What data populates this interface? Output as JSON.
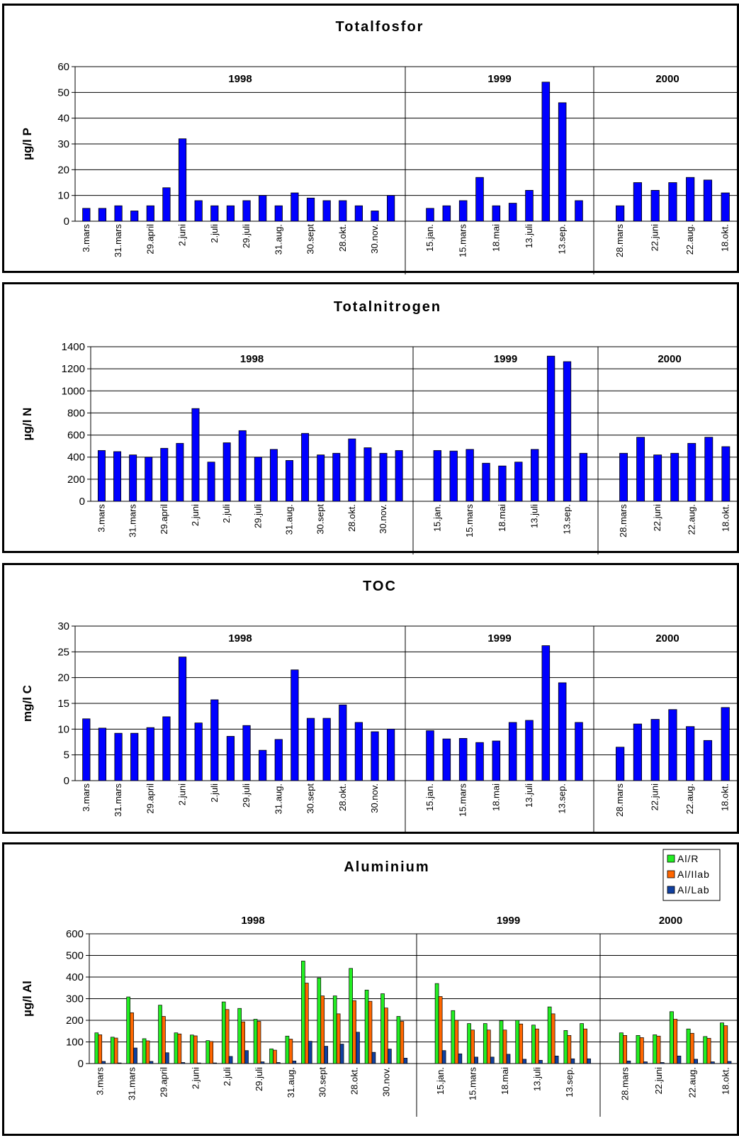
{
  "colors": {
    "bar": "#0000FF",
    "al_r": "#22EE22",
    "al_ilab": "#FF6600",
    "al_lab": "#1040A0",
    "grid": "#000000"
  },
  "chart_data": [
    {
      "type": "bar",
      "title": "Totalfosfor",
      "ylabel": "µg/l P",
      "ylim": [
        0,
        60
      ],
      "yticks": [
        0,
        10,
        20,
        30,
        40,
        50,
        60
      ],
      "year_labels": [
        "1998",
        "1999",
        "2000"
      ],
      "groups": [
        {
          "year": "1998",
          "values": [
            5,
            5,
            6,
            4,
            6,
            13,
            32,
            8,
            6,
            6,
            8,
            10,
            6,
            11,
            9,
            8,
            8,
            6,
            4,
            10
          ]
        },
        {
          "year": "1999",
          "values": [
            5,
            6,
            8,
            17,
            6,
            7,
            12,
            54,
            46,
            8
          ]
        },
        {
          "year": "2000",
          "values": [
            6,
            15,
            12,
            15,
            17,
            16,
            11
          ]
        }
      ],
      "tick_labels": {
        "1998": [
          "3.mars",
          "31.mars",
          "29.april",
          "2.juni",
          "2.juli",
          "29.juli",
          "31.aug.",
          "30.sept",
          "28.okt.",
          "30.nov."
        ],
        "1999": [
          "15.jan.",
          "15.mars",
          "18.mai",
          "13.juli",
          "13.sep."
        ],
        "2000": [
          "28.mars",
          "22.juni",
          "22.aug.",
          "18.okt."
        ]
      }
    },
    {
      "type": "bar",
      "title": "Totalnitrogen",
      "ylabel": "µg/l N",
      "ylim": [
        0,
        1400
      ],
      "yticks": [
        0,
        200,
        400,
        600,
        800,
        1000,
        1200,
        1400
      ],
      "year_labels": [
        "1998",
        "1999",
        "2000"
      ],
      "groups": [
        {
          "year": "1998",
          "values": [
            460,
            450,
            420,
            400,
            480,
            525,
            840,
            355,
            530,
            640,
            400,
            470,
            370,
            615,
            420,
            435,
            565,
            485,
            435,
            460
          ]
        },
        {
          "year": "1999",
          "values": [
            460,
            455,
            470,
            345,
            320,
            355,
            470,
            1315,
            1265,
            435
          ]
        },
        {
          "year": "2000",
          "values": [
            435,
            580,
            420,
            435,
            525,
            580,
            495
          ]
        }
      ],
      "tick_labels": {
        "1998": [
          "3.mars",
          "31.mars",
          "29.april",
          "2.juni",
          "2.juli",
          "29.juli",
          "31.aug.",
          "30.sept",
          "28.okt.",
          "30.nov."
        ],
        "1999": [
          "15.jan.",
          "15.mars",
          "18.mai",
          "13.juli",
          "13.sep."
        ],
        "2000": [
          "28.mars",
          "22.juni",
          "22.aug.",
          "18.okt."
        ]
      }
    },
    {
      "type": "bar",
      "title": "TOC",
      "ylabel": "mg/l C",
      "ylim": [
        0,
        30
      ],
      "yticks": [
        0,
        5,
        10,
        15,
        20,
        25,
        30
      ],
      "year_labels": [
        "1998",
        "1999",
        "2000"
      ],
      "groups": [
        {
          "year": "1998",
          "values": [
            12,
            10.2,
            9.2,
            9.2,
            10.3,
            12.4,
            24,
            11.2,
            15.7,
            8.6,
            10.7,
            5.9,
            8,
            21.5,
            12.1,
            12.1,
            14.7,
            11.3,
            9.5,
            10
          ]
        },
        {
          "year": "1999",
          "values": [
            9.7,
            8.1,
            8.2,
            7.4,
            7.7,
            11.3,
            11.7,
            26.2,
            19,
            11.3
          ]
        },
        {
          "year": "2000",
          "values": [
            6.5,
            11,
            11.9,
            13.8,
            10.5,
            7.8,
            14.2
          ]
        }
      ],
      "tick_labels": {
        "1998": [
          "3.mars",
          "31.mars",
          "29.april",
          "2.juni",
          "2.juli",
          "29.juli",
          "31.aug.",
          "30.sept",
          "28.okt.",
          "30.nov."
        ],
        "1999": [
          "15.jan.",
          "15.mars",
          "18.mai",
          "13.juli",
          "13.sep."
        ],
        "2000": [
          "28.mars",
          "22.juni",
          "22.aug.",
          "18.okt."
        ]
      }
    },
    {
      "type": "bar",
      "title": "Aluminium",
      "ylabel": "µg/l Al",
      "ylim": [
        0,
        600
      ],
      "yticks": [
        0,
        100,
        200,
        300,
        400,
        500,
        600
      ],
      "year_labels": [
        "1998",
        "1999",
        "2000"
      ],
      "legend": [
        "Al/R",
        "Al/Ilab",
        "Al/Lab"
      ],
      "legend_position": "top-right",
      "groups": [
        {
          "year": "1998",
          "series": [
            {
              "name": "Al/R",
              "values": [
                142,
                122,
                308,
                115,
                270,
                142,
                132,
                106,
                285,
                255,
                205,
                68,
                127,
                474,
                396,
                313,
                440,
                340,
                323,
                218
              ]
            },
            {
              "name": "Al/Ilab",
              "values": [
                133,
                118,
                235,
                105,
                218,
                137,
                128,
                102,
                250,
                193,
                195,
                62,
                113,
                372,
                313,
                230,
                291,
                288,
                257,
                195
              ]
            },
            {
              "name": "Al/Lab",
              "values": [
                10,
                3,
                72,
                10,
                50,
                5,
                3,
                3,
                33,
                60,
                8,
                5,
                12,
                103,
                80,
                90,
                145,
                52,
                67,
                25
              ]
            }
          ]
        },
        {
          "year": "1999",
          "series": [
            {
              "name": "Al/R",
              "values": [
                370,
                245,
                185,
                185,
                198,
                200,
                178,
                262,
                153,
                185
              ]
            },
            {
              "name": "Al/Ilab",
              "values": [
                310,
                200,
                155,
                155,
                155,
                183,
                160,
                230,
                130,
                160
              ]
            },
            {
              "name": "Al/Lab",
              "values": [
                60,
                45,
                30,
                30,
                43,
                20,
                15,
                35,
                22,
                22
              ]
            }
          ]
        },
        {
          "year": "2000",
          "series": [
            {
              "name": "Al/R",
              "values": [
                142,
                130,
                133,
                240,
                160,
                125,
                188
              ]
            },
            {
              "name": "Al/Ilab",
              "values": [
                130,
                120,
                127,
                205,
                140,
                117,
                175
              ]
            },
            {
              "name": "Al/Lab",
              "values": [
                12,
                8,
                5,
                35,
                20,
                8,
                10
              ]
            }
          ]
        }
      ],
      "tick_labels": {
        "1998": [
          "3.mars",
          "31.mars",
          "29.april",
          "2.juni",
          "2.juli",
          "29.juli",
          "31.aug.",
          "30.sept",
          "28.okt.",
          "30.nov."
        ],
        "1999": [
          "15.jan.",
          "15.mars",
          "18.mai",
          "13.juli",
          "13.sep."
        ],
        "2000": [
          "28.mars",
          "22.juni",
          "22.aug.",
          "18.okt."
        ]
      }
    }
  ]
}
